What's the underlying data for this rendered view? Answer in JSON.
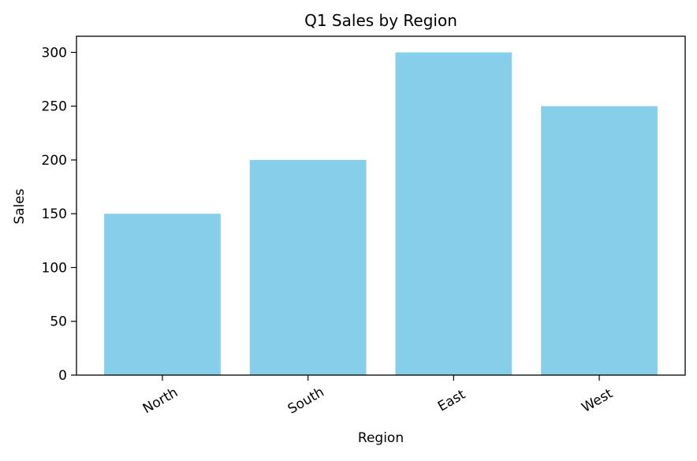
{
  "chart_data": {
    "type": "bar",
    "title": "Q1 Sales by Region",
    "xlabel": "Region",
    "ylabel": "Sales",
    "categories": [
      "North",
      "South",
      "East",
      "West"
    ],
    "values": [
      150,
      200,
      300,
      250
    ],
    "ylim": [
      0,
      315
    ],
    "yticks": [
      0,
      50,
      100,
      150,
      200,
      250,
      300
    ],
    "grid": false,
    "colors": {
      "bar": "#87CEEB",
      "axis": "#000000",
      "background": "#ffffff"
    }
  }
}
